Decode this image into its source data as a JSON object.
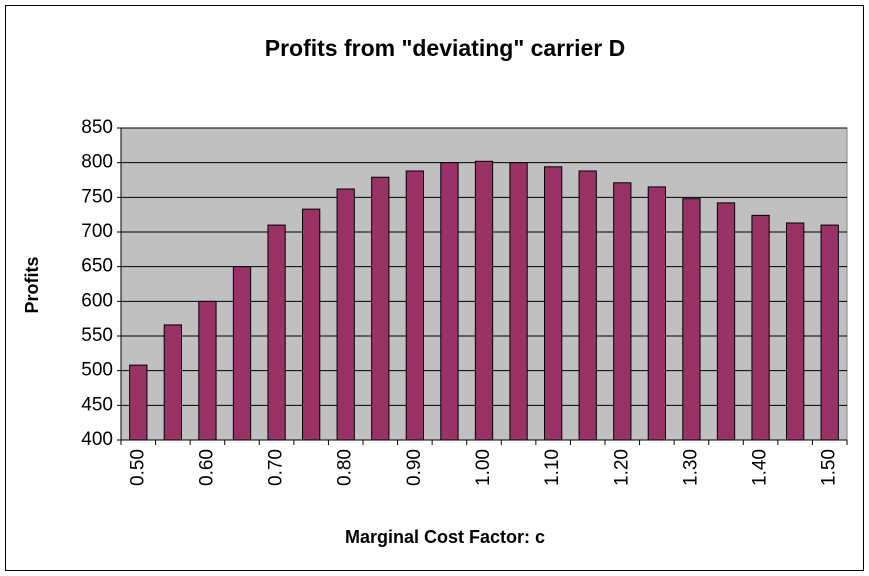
{
  "chart_data": {
    "type": "bar",
    "title": "Profits  from \"deviating\" carrier D",
    "x_label": "Marginal Cost Factor:  c",
    "y_label": "Profits",
    "categories": [
      "0.50",
      null,
      "0.60",
      null,
      "0.70",
      null,
      "0.80",
      null,
      "0.90",
      null,
      "1.00",
      null,
      "1.10",
      null,
      "1.20",
      null,
      "1.30",
      null,
      "1.40",
      null,
      "1.50"
    ],
    "values": [
      508,
      566,
      600,
      650,
      710,
      733,
      762,
      779,
      788,
      800,
      802,
      800,
      794,
      788,
      771,
      765,
      748,
      742,
      724,
      713,
      710
    ],
    "color": "#993366",
    "ylim": [
      400,
      850
    ],
    "yticks": [
      400,
      450,
      500,
      550,
      600,
      650,
      700,
      750,
      800,
      850
    ],
    "grid": true
  }
}
